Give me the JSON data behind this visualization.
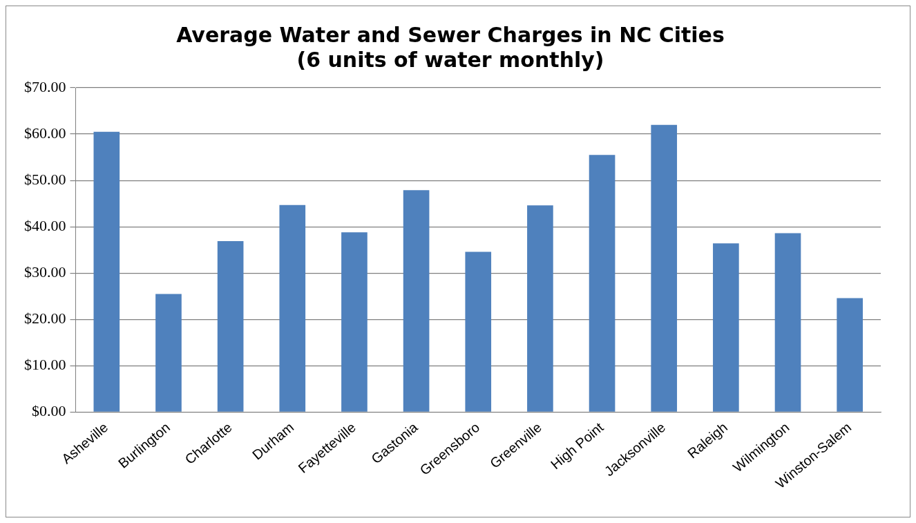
{
  "chart_data": {
    "type": "bar",
    "title": [
      "Average Water and Sewer Charges in NC Cities",
      "(6 units of water monthly)"
    ],
    "categories": [
      "Asheville",
      "Burlington",
      "Charlotte",
      "Durham",
      "Fayetteville",
      "Gastonia",
      "Greensboro",
      "Greenville",
      "High Point",
      "Jacksonville",
      "Raleigh",
      "Wilmington",
      "Winston-Salem"
    ],
    "values": [
      60.5,
      25.5,
      36.9,
      44.7,
      38.8,
      47.9,
      34.6,
      44.6,
      55.5,
      62.0,
      36.4,
      38.6,
      24.6
    ],
    "color": "#4f81bd",
    "ylim": [
      0,
      70
    ],
    "yticks": [
      {
        "value": 0,
        "label": "$0.00"
      },
      {
        "value": 10,
        "label": "$10.00"
      },
      {
        "value": 20,
        "label": "$20.00"
      },
      {
        "value": 30,
        "label": "$30.00"
      },
      {
        "value": 40,
        "label": "$40.00"
      },
      {
        "value": 50,
        "label": "$50.00"
      },
      {
        "value": 60,
        "label": "$60.00"
      },
      {
        "value": 70,
        "label": "$70.00"
      }
    ],
    "grid": "y",
    "legend": false
  }
}
